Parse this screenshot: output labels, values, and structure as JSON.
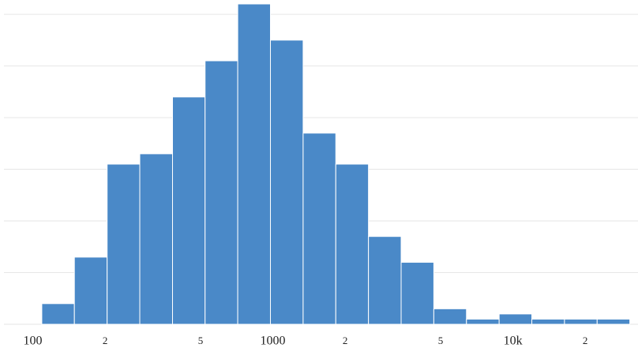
{
  "chart_data": {
    "type": "histogram",
    "bins": [
      109,
      149,
      204,
      279,
      382,
      522,
      714,
      977,
      1337,
      1829,
      2502,
      3423,
      4683,
      6406,
      8764,
      11990,
      16402,
      22438,
      30695
    ],
    "values": [
      4,
      13,
      31,
      33,
      44,
      51,
      62,
      55,
      37,
      31,
      17,
      12,
      3,
      1,
      2,
      1,
      1,
      1
    ],
    "color": "#4a89c8",
    "xscale": "log",
    "xlim": [
      73,
      33200
    ],
    "xticks": [
      100,
      {
        "value": 200,
        "label": "2"
      },
      {
        "value": 500,
        "label": "5"
      },
      1000,
      {
        "value": 2000,
        "label": "2"
      },
      {
        "value": 5000,
        "label": "5"
      },
      {
        "value": 10000,
        "label": "10k"
      },
      {
        "value": 20000,
        "label": "2"
      }
    ],
    "ylim": [
      0,
      62
    ],
    "yticks": [
      0,
      10,
      20,
      30,
      40,
      50,
      60
    ],
    "grid": true
  }
}
